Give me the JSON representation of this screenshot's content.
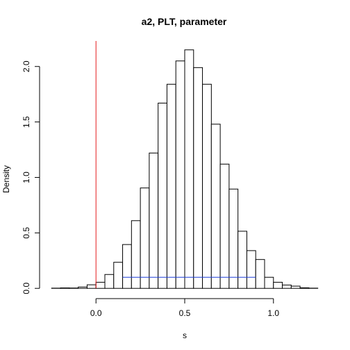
{
  "chart_data": {
    "type": "histogram",
    "title": "a2, PLT, parameter",
    "xlabel": "s",
    "ylabel": "Density",
    "xlim": [
      -0.31,
      1.31
    ],
    "ylim": [
      -0.08,
      2.23
    ],
    "bin_width": 0.05,
    "bin_starts": [
      -0.25,
      -0.2,
      -0.15,
      -0.1,
      -0.05,
      0.0,
      0.05,
      0.1,
      0.15,
      0.2,
      0.25,
      0.3,
      0.35,
      0.4,
      0.45,
      0.5,
      0.55,
      0.6,
      0.65,
      0.7,
      0.75,
      0.8,
      0.85,
      0.9,
      0.95,
      1.0,
      1.05,
      1.1,
      1.15,
      1.2
    ],
    "densities": [
      0.002,
      0.004,
      0.003,
      0.012,
      0.032,
      0.055,
      0.125,
      0.235,
      0.395,
      0.61,
      0.905,
      1.22,
      1.67,
      1.84,
      2.05,
      2.15,
      1.99,
      1.84,
      1.48,
      1.12,
      0.895,
      0.515,
      0.34,
      0.26,
      0.1,
      0.055,
      0.03,
      0.02,
      0.005,
      0.002
    ],
    "x_ticks": [
      0.0,
      0.5,
      1.0
    ],
    "x_tick_labels": [
      "0.0",
      "0.5",
      "1.0"
    ],
    "y_ticks": [
      0.0,
      0.5,
      1.0,
      1.5,
      2.0
    ],
    "y_tick_labels": [
      "0.0",
      "0.5",
      "1.0",
      "1.5",
      "2.0"
    ],
    "vertical_line": {
      "x": 0.0,
      "color": "#e41a1c"
    },
    "interval_segment": {
      "x0": 0.15,
      "x1": 0.9,
      "y": 0.1,
      "color": "#1f3fd6"
    },
    "colors": {
      "bar_fill": "#ffffff",
      "bar_stroke": "#000000",
      "axis": "#000000"
    }
  }
}
